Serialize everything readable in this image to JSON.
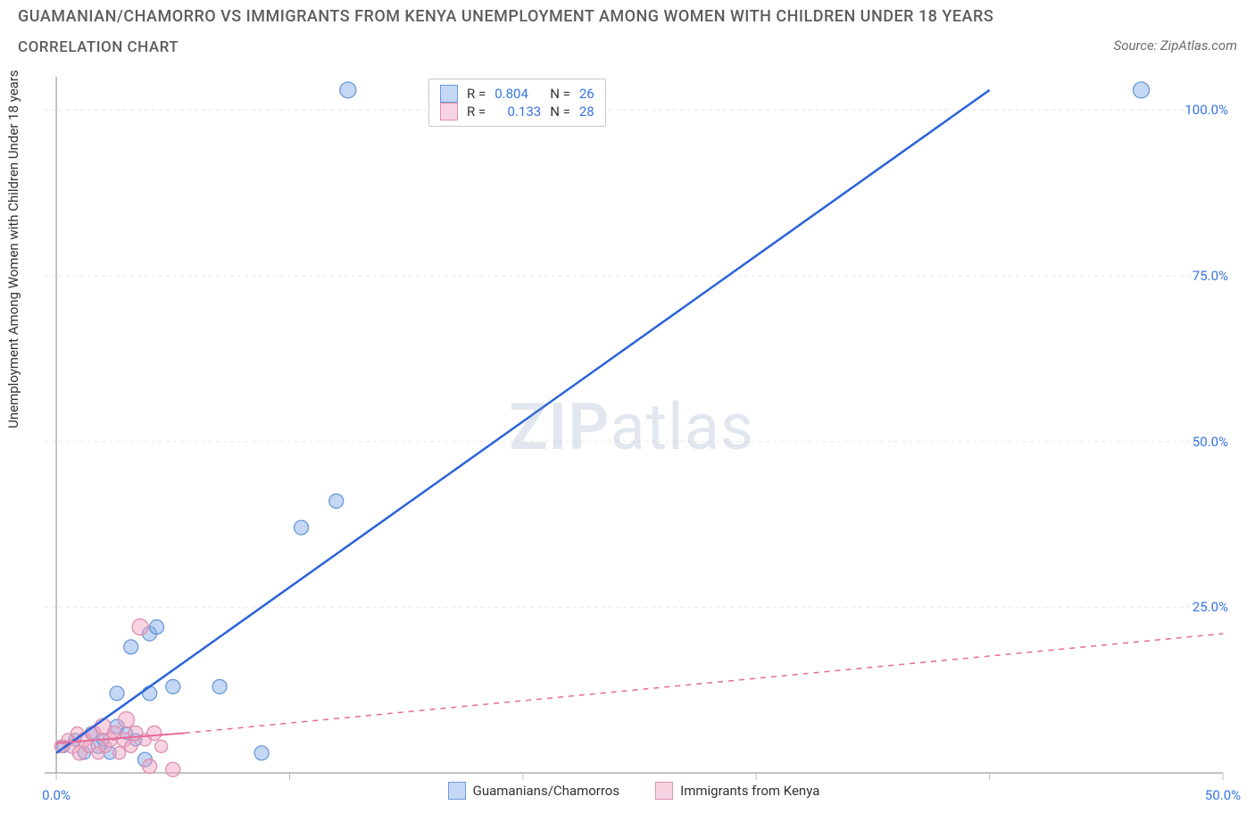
{
  "title_line1": "GUAMANIAN/CHAMORRO VS IMMIGRANTS FROM KENYA UNEMPLOYMENT AMONG WOMEN WITH CHILDREN UNDER 18 YEARS",
  "title_line2": "CORRELATION CHART",
  "source_label": "Source: ZipAtlas.com",
  "y_label": "Unemployment Among Women with Children Under 18 years",
  "watermark_zip": "ZIP",
  "watermark_atlas": "atlas",
  "chart": {
    "type": "scatter",
    "background_color": "#ffffff",
    "grid_color": "#e8e8e8",
    "axis_color": "#888888",
    "tick_color": "#bbbbbb",
    "xlim": [
      -0.5,
      50
    ],
    "ylim": [
      0,
      105
    ],
    "x_ticks": [
      0,
      10,
      20,
      30,
      40,
      50
    ],
    "x_tick_labels": [
      "0.0%",
      "",
      "",
      "",
      "",
      "50.0%"
    ],
    "y_ticks_right": [
      25,
      50,
      75,
      100
    ],
    "y_tick_labels": [
      "25.0%",
      "50.0%",
      "75.0%",
      "100.0%"
    ],
    "series": [
      {
        "name": "Guamanians/Chamorros",
        "color_fill": "rgba(125,168,232,0.45)",
        "color_stroke": "#6b99d6",
        "line_color": "#2b63d9",
        "line_dash": "none",
        "R": "0.804",
        "N": "26",
        "trend": {
          "x1": 0,
          "y1": 3,
          "x2": 40,
          "y2": 103
        },
        "points": [
          {
            "x": 0.3,
            "y": 4,
            "r": 7
          },
          {
            "x": 0.8,
            "y": 5,
            "r": 7
          },
          {
            "x": 1.2,
            "y": 3,
            "r": 7
          },
          {
            "x": 1.5,
            "y": 6,
            "r": 7
          },
          {
            "x": 1.8,
            "y": 4,
            "r": 8
          },
          {
            "x": 2.0,
            "y": 5,
            "r": 7
          },
          {
            "x": 2.3,
            "y": 3,
            "r": 7
          },
          {
            "x": 2.6,
            "y": 7,
            "r": 8
          },
          {
            "x": 2.6,
            "y": 12,
            "r": 8
          },
          {
            "x": 3.0,
            "y": 6,
            "r": 7
          },
          {
            "x": 3.2,
            "y": 19,
            "r": 8
          },
          {
            "x": 3.4,
            "y": 5,
            "r": 7
          },
          {
            "x": 3.8,
            "y": 2,
            "r": 8
          },
          {
            "x": 4.0,
            "y": 21,
            "r": 8
          },
          {
            "x": 4.0,
            "y": 12,
            "r": 8
          },
          {
            "x": 4.3,
            "y": 22,
            "r": 8
          },
          {
            "x": 5.0,
            "y": 13,
            "r": 8
          },
          {
            "x": 7.0,
            "y": 13,
            "r": 8
          },
          {
            "x": 8.8,
            "y": 3,
            "r": 8
          },
          {
            "x": 10.5,
            "y": 37,
            "r": 8
          },
          {
            "x": 12.0,
            "y": 41,
            "r": 8
          },
          {
            "x": 12.5,
            "y": 103,
            "r": 9
          },
          {
            "x": 46.5,
            "y": 103,
            "r": 9
          }
        ]
      },
      {
        "name": "Immigrants from Kenya",
        "color_fill": "rgba(240,160,190,0.45)",
        "color_stroke": "#dd8fae",
        "line_color": "#e66a9a",
        "line_dash": "6 6",
        "R": "0.133",
        "N": "28",
        "trend_solid": {
          "x1": 0,
          "y1": 4.5,
          "x2": 5.5,
          "y2": 6
        },
        "trend_dashed": {
          "x1": 5.5,
          "y1": 6,
          "x2": 50,
          "y2": 21
        },
        "points": [
          {
            "x": 0.2,
            "y": 4,
            "r": 7
          },
          {
            "x": 0.5,
            "y": 5,
            "r": 7
          },
          {
            "x": 0.7,
            "y": 4,
            "r": 8
          },
          {
            "x": 0.9,
            "y": 6,
            "r": 7
          },
          {
            "x": 1.0,
            "y": 3,
            "r": 8
          },
          {
            "x": 1.2,
            "y": 5,
            "r": 8
          },
          {
            "x": 1.4,
            "y": 4,
            "r": 7
          },
          {
            "x": 1.6,
            "y": 6,
            "r": 8
          },
          {
            "x": 1.8,
            "y": 3,
            "r": 7
          },
          {
            "x": 2.0,
            "y": 7,
            "r": 9
          },
          {
            "x": 2.1,
            "y": 4,
            "r": 7
          },
          {
            "x": 2.3,
            "y": 5,
            "r": 8
          },
          {
            "x": 2.5,
            "y": 6,
            "r": 8
          },
          {
            "x": 2.7,
            "y": 3,
            "r": 7
          },
          {
            "x": 2.9,
            "y": 5,
            "r": 8
          },
          {
            "x": 3.0,
            "y": 8,
            "r": 9
          },
          {
            "x": 3.2,
            "y": 4,
            "r": 7
          },
          {
            "x": 3.4,
            "y": 6,
            "r": 8
          },
          {
            "x": 3.6,
            "y": 22,
            "r": 9
          },
          {
            "x": 3.8,
            "y": 5,
            "r": 7
          },
          {
            "x": 4.0,
            "y": 1,
            "r": 8
          },
          {
            "x": 4.2,
            "y": 6,
            "r": 8
          },
          {
            "x": 4.5,
            "y": 4,
            "r": 7
          },
          {
            "x": 5.0,
            "y": 0.5,
            "r": 8
          }
        ]
      }
    ]
  },
  "legend": {
    "r_label": "R =",
    "n_label": "N ="
  }
}
